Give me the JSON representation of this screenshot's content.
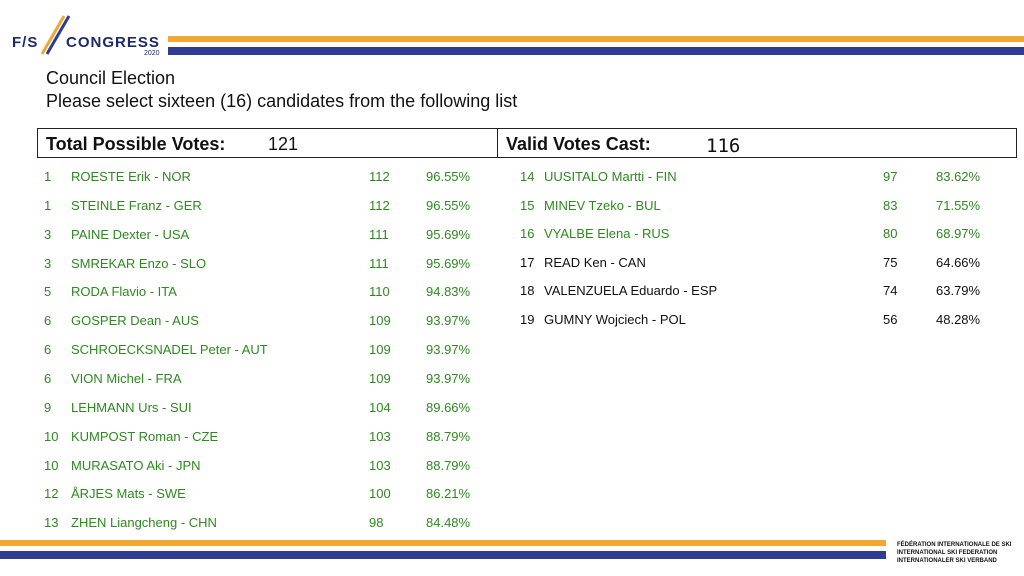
{
  "header": {
    "logo_fis": "F/S",
    "logo_congress": "CONGRESS",
    "logo_year": "2020",
    "org_lines": [
      "FÉDÉRATION INTERNATIONALE DE SKI",
      "INTERNATIONAL SKI FEDERATION",
      "INTERNATIONALER SKI VERBAND"
    ]
  },
  "title": "Council Election",
  "subtitle": "Please select sixteen (16) candidates from the following list",
  "total_possible_votes": {
    "label": "Total Possible Votes:",
    "value": "121"
  },
  "valid_votes_cast": {
    "label": "Valid Votes Cast:",
    "value": "116"
  },
  "colors": {
    "elected": "#2c8a1e",
    "not_elected": "#111111",
    "gold": "#f0a830",
    "blue": "#2e3c93"
  },
  "candidates_left": [
    {
      "rank": "1",
      "name": "ROESTE Erik - NOR",
      "votes": "112",
      "pct": "96.55%",
      "elected": true
    },
    {
      "rank": "1",
      "name": "STEINLE Franz - GER",
      "votes": "112",
      "pct": "96.55%",
      "elected": true
    },
    {
      "rank": "3",
      "name": "PAINE Dexter - USA",
      "votes": "111",
      "pct": "95.69%",
      "elected": true
    },
    {
      "rank": "3",
      "name": "SMREKAR Enzo - SLO",
      "votes": "111",
      "pct": "95.69%",
      "elected": true
    },
    {
      "rank": "5",
      "name": "RODA Flavio - ITA",
      "votes": "110",
      "pct": "94.83%",
      "elected": true
    },
    {
      "rank": "6",
      "name": "GOSPER Dean - AUS",
      "votes": "109",
      "pct": "93.97%",
      "elected": true
    },
    {
      "rank": "6",
      "name": "SCHROECKSNADEL Peter - AUT",
      "votes": "109",
      "pct": "93.97%",
      "elected": true
    },
    {
      "rank": "6",
      "name": "VION Michel - FRA",
      "votes": "109",
      "pct": "93.97%",
      "elected": true
    },
    {
      "rank": "9",
      "name": "LEHMANN Urs - SUI",
      "votes": "104",
      "pct": "89.66%",
      "elected": true
    },
    {
      "rank": "10",
      "name": "KUMPOST Roman - CZE",
      "votes": "103",
      "pct": "88.79%",
      "elected": true
    },
    {
      "rank": "10",
      "name": "MURASATO Aki - JPN",
      "votes": "103",
      "pct": "88.79%",
      "elected": true
    },
    {
      "rank": "12",
      "name": "ÅRJES Mats - SWE",
      "votes": "100",
      "pct": "86.21%",
      "elected": true
    },
    {
      "rank": "13",
      "name": "ZHEN Liangcheng - CHN",
      "votes": "98",
      "pct": "84.48%",
      "elected": true
    }
  ],
  "candidates_right": [
    {
      "rank": "14",
      "name": "UUSITALO Martti - FIN",
      "votes": "97",
      "pct": "83.62%",
      "elected": true
    },
    {
      "rank": "15",
      "name": "MINEV Tzeko - BUL",
      "votes": "83",
      "pct": "71.55%",
      "elected": true
    },
    {
      "rank": "16",
      "name": "VYALBE Elena - RUS",
      "votes": "80",
      "pct": "68.97%",
      "elected": true
    },
    {
      "rank": "17",
      "name": "READ Ken - CAN",
      "votes": "75",
      "pct": "64.66%",
      "elected": false
    },
    {
      "rank": "18",
      "name": "VALENZUELA Eduardo - ESP",
      "votes": "74",
      "pct": "63.79%",
      "elected": false
    },
    {
      "rank": "19",
      "name": "GUMNY Wojciech - POL",
      "votes": "56",
      "pct": "48.28%",
      "elected": false
    }
  ]
}
